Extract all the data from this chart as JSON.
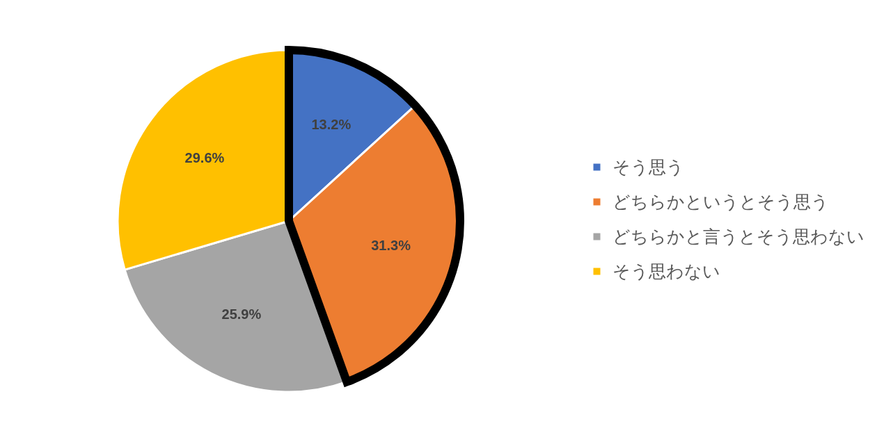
{
  "chart_data": {
    "type": "pie",
    "categories": [
      "そう思う",
      "どちらかというとそう思う",
      "どちらかと言うとそう思わない",
      "そう思わない"
    ],
    "values": [
      13.2,
      31.3,
      25.9,
      29.6
    ],
    "colors": [
      "#4472c4",
      "#ed7d31",
      "#a5a5a5",
      "#ffc000"
    ],
    "value_labels": [
      "13.2%",
      "31.3%",
      "25.9%",
      "29.6%"
    ],
    "legend": "right"
  }
}
